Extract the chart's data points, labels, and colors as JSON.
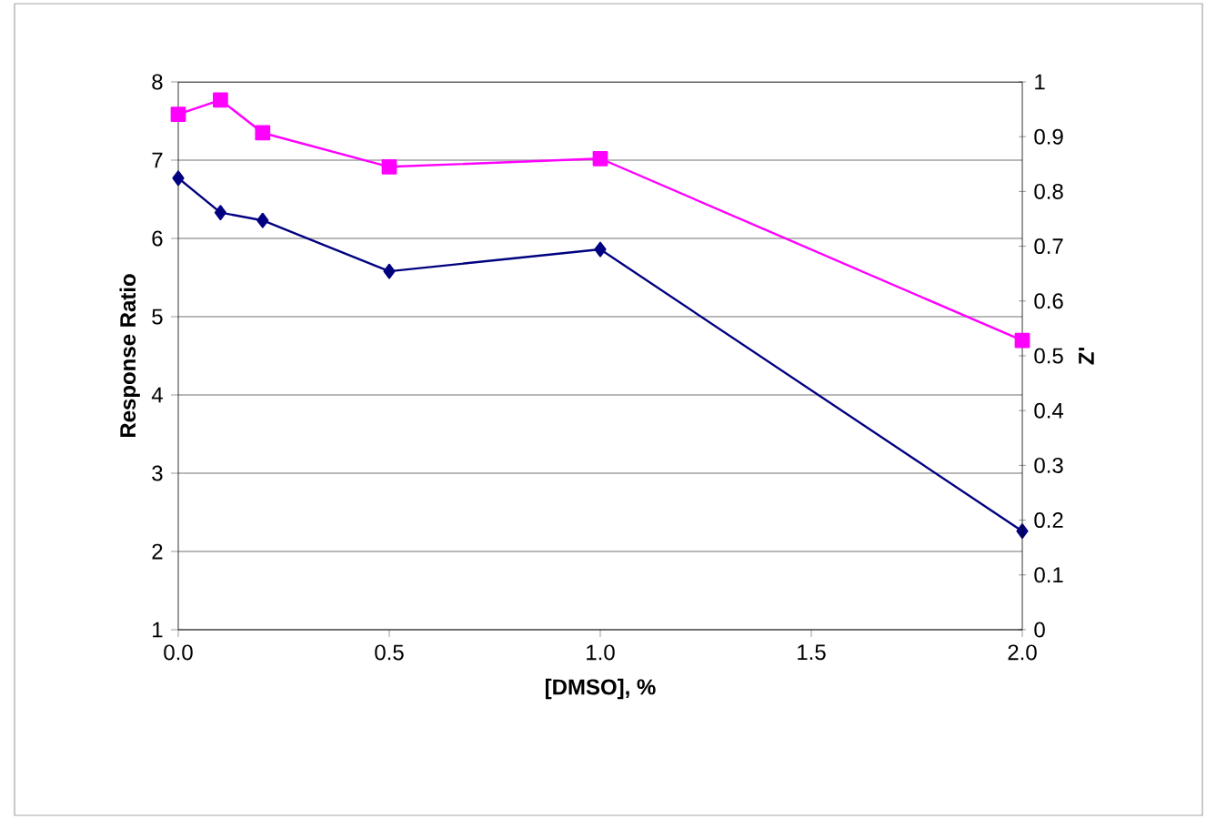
{
  "chart_data": {
    "type": "line",
    "xlabel": "[DMSO], %",
    "ylabel": "Response Ratio",
    "y2label": "Z'",
    "x": [
      0,
      0.1,
      0.2,
      0.5,
      1,
      2
    ],
    "xlim": [
      0,
      2
    ],
    "xticks": [
      {
        "value": 0,
        "label": "0.0"
      },
      {
        "value": 0.5,
        "label": "0.5"
      },
      {
        "value": 1,
        "label": "1.0"
      },
      {
        "value": 1.5,
        "label": "1.5"
      },
      {
        "value": 2,
        "label": "2.0"
      }
    ],
    "ylim": [
      1,
      8
    ],
    "yticks": [
      1,
      2,
      3,
      4,
      5,
      6,
      7,
      8
    ],
    "y2lim": [
      0,
      1
    ],
    "y2ticks": [
      0,
      0.1,
      0.2,
      0.3,
      0.4,
      0.5,
      0.6,
      0.7,
      0.8,
      0.9,
      1
    ],
    "grid": "y",
    "line_style": "solid",
    "series": [
      {
        "color": "#000080",
        "marker": "diamond",
        "values": [
          6.77,
          6.33,
          6.23,
          5.58,
          5.86,
          2.26
        ]
      },
      {
        "color": "#ff00ff",
        "marker": "square",
        "axis": "y2",
        "values": [
          0.941,
          0.967,
          0.907,
          0.845,
          0.86,
          0.528
        ]
      }
    ]
  }
}
